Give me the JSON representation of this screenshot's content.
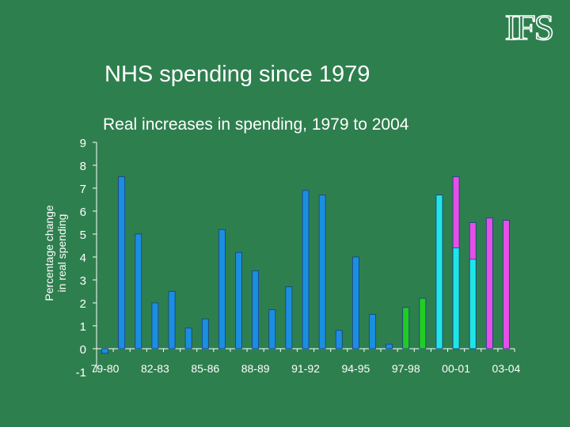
{
  "logo_text": "IFS",
  "title": "NHS spending since 1979",
  "chart_data": {
    "type": "bar",
    "title": "Real increases in spending, 1979 to 2004",
    "ylabel_lines": [
      "Percentage change",
      "in real spending"
    ],
    "ylim": [
      -1,
      9
    ],
    "yticks": [
      -1,
      0,
      1,
      2,
      3,
      4,
      5,
      6,
      7,
      8,
      9
    ],
    "categories": [
      "79-80",
      "80-81",
      "81-82",
      "82-83",
      "83-84",
      "84-85",
      "85-86",
      "86-87",
      "87-88",
      "88-89",
      "89-90",
      "90-91",
      "91-92",
      "92-93",
      "93-94",
      "94-95",
      "95-96",
      "96-97",
      "97-98",
      "98-99",
      "99-00",
      "00-01",
      "01-02",
      "02-03",
      "03-04"
    ],
    "x_tick_labels": [
      "79-80",
      "82-83",
      "85-86",
      "88-89",
      "91-92",
      "94-95",
      "97-98",
      "00-01",
      "03-04"
    ],
    "values": [
      -0.2,
      7.5,
      5.0,
      2.0,
      2.5,
      0.9,
      1.3,
      5.2,
      4.2,
      3.4,
      1.7,
      2.7,
      6.9,
      6.7,
      0.8,
      4.0,
      1.5,
      0.2,
      1.8,
      2.2,
      6.7,
      4.4,
      3.9,
      null,
      null
    ],
    "overlay_values": [
      null,
      null,
      null,
      null,
      null,
      null,
      null,
      null,
      null,
      null,
      null,
      null,
      null,
      null,
      null,
      null,
      null,
      null,
      null,
      null,
      null,
      7.5,
      5.5,
      5.7,
      5.6
    ],
    "bar_colors": [
      "#1a8fe0",
      "#1a8fe0",
      "#1a8fe0",
      "#1a8fe0",
      "#1a8fe0",
      "#1a8fe0",
      "#1a8fe0",
      "#1a8fe0",
      "#1a8fe0",
      "#1a8fe0",
      "#1a8fe0",
      "#1a8fe0",
      "#1a8fe0",
      "#1a8fe0",
      "#1a8fe0",
      "#1a8fe0",
      "#1a8fe0",
      "#1a8fe0",
      "#22cc22",
      "#22cc22",
      "#1fe6e6",
      "#1fe6e6",
      "#1fe6e6",
      "#e64fe6",
      "#e64fe6"
    ],
    "overlay_color": "#e64fe6",
    "grid": false
  }
}
